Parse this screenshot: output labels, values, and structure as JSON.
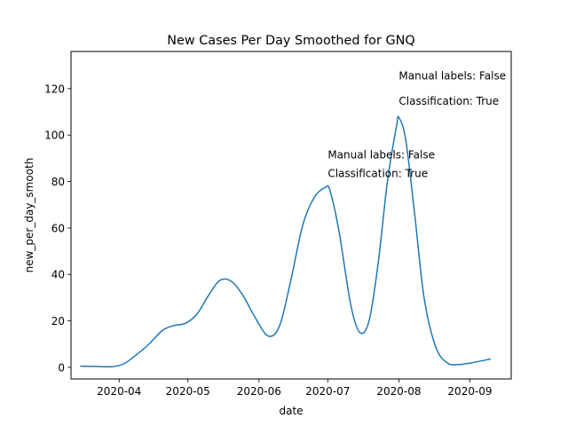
{
  "chart_data": {
    "type": "line",
    "title": "New Cases Per Day Smoothed for GNQ",
    "xlabel": "date",
    "ylabel": "new_per_day_smooth",
    "x_tick_labels": [
      "2020-04",
      "2020-05",
      "2020-06",
      "2020-07",
      "2020-08",
      "2020-09"
    ],
    "x_ticks": [
      "2020-04-01",
      "2020-05-01",
      "2020-06-01",
      "2020-07-01",
      "2020-08-01",
      "2020-09-01"
    ],
    "y_ticks": [
      0,
      20,
      40,
      60,
      80,
      100,
      120
    ],
    "xlim": [
      "2020-03-11",
      "2020-09-19"
    ],
    "ylim": [
      -5,
      136
    ],
    "grid": false,
    "line_color": "#1f77b4",
    "series": [
      {
        "x": [
          "2020-03-15",
          "2020-03-22",
          "2020-03-29",
          "2020-04-03",
          "2020-04-08",
          "2020-04-14",
          "2020-04-20",
          "2020-04-25",
          "2020-04-30",
          "2020-05-05",
          "2020-05-10",
          "2020-05-15",
          "2020-05-20",
          "2020-05-25",
          "2020-05-30",
          "2020-06-05",
          "2020-06-10",
          "2020-06-15",
          "2020-06-20",
          "2020-06-25",
          "2020-06-30",
          "2020-07-02",
          "2020-07-06",
          "2020-07-11",
          "2020-07-15",
          "2020-07-19",
          "2020-07-23",
          "2020-07-27",
          "2020-07-31",
          "2020-08-01",
          "2020-08-04",
          "2020-08-08",
          "2020-08-12",
          "2020-08-17",
          "2020-08-22",
          "2020-08-27",
          "2020-09-02",
          "2020-09-10"
        ],
        "y": [
          0.5,
          0.4,
          0.3,
          1.5,
          5,
          10,
          16,
          18,
          19,
          23,
          31,
          37.5,
          37,
          31,
          22,
          13.5,
          18,
          38,
          61,
          73,
          77.5,
          76,
          58,
          27,
          15,
          20,
          45,
          80,
          104,
          107.5,
          98,
          65,
          30,
          9,
          2,
          1.2,
          2,
          3.6
        ]
      }
    ],
    "annotations": [
      {
        "labels": [
          "Manual labels: False",
          "Classification: True"
        ],
        "x": "2020-07-01",
        "y": [
          90,
          82
        ]
      },
      {
        "labels": [
          "Manual labels: False",
          "Classification: True"
        ],
        "x": "2020-08-01",
        "y": [
          124,
          113
        ]
      }
    ]
  }
}
